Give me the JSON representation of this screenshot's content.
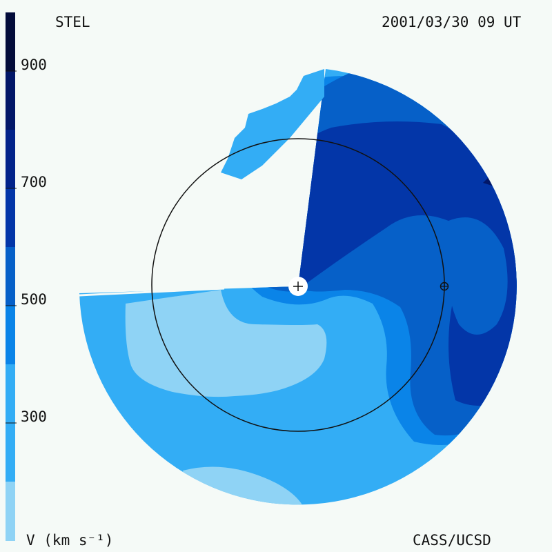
{
  "header": {
    "source": "STEL",
    "timestamp": "2001/03/30 09 UT"
  },
  "footer": {
    "unit_label": "V (km s⁻¹)",
    "credit": "CASS/UCSD"
  },
  "colorbar": {
    "ticks": [
      "900",
      "700",
      "500",
      "300"
    ],
    "bands": [
      {
        "color": "#8fd3f5"
      },
      {
        "color": "#33adf5"
      },
      {
        "color": "#0a84e8"
      },
      {
        "color": "#0660c8"
      },
      {
        "color": "#0336a8"
      },
      {
        "color": "#02238a"
      },
      {
        "color": "#021768"
      },
      {
        "color": "#030c3a"
      }
    ]
  },
  "map": {
    "center_marker": "+",
    "earth_marker": "earth-symbol"
  }
}
